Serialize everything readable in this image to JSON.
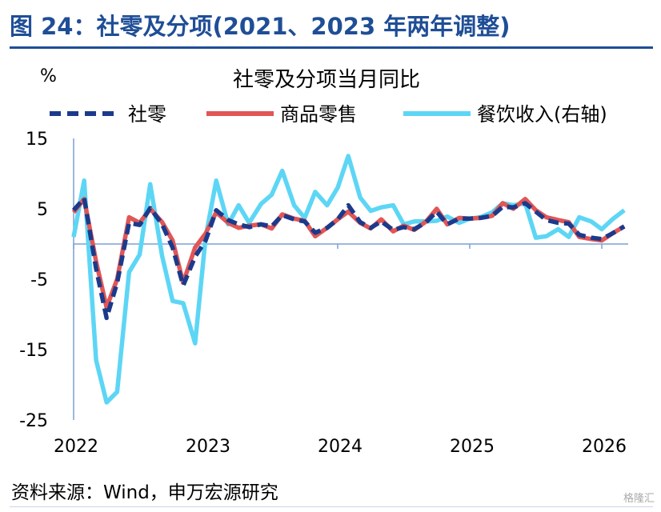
{
  "page": {
    "title": "图 24：社零及分项(2021、2023 年两年调整)",
    "source": "资料来源：Wind，申万宏源研究",
    "watermark": "格隆汇"
  },
  "chart_data": {
    "type": "line",
    "title": "社零及分项当月同比",
    "unit_label": "%",
    "xlabel": "",
    "ylabel": "%",
    "x_ticks": [
      "2022",
      "2023",
      "2024",
      "2025",
      "2026"
    ],
    "y_ticks": [
      15,
      5,
      -5,
      -15,
      -25
    ],
    "ylim": [
      -25,
      15
    ],
    "x_range": [
      2022.0,
      2026.2
    ],
    "grid": false,
    "legend_position": "top",
    "series": [
      {
        "name": "社零",
        "color": "#1b3a8c",
        "style": "dashed",
        "x": [
          2022.0,
          2022.08,
          2022.17,
          2022.25,
          2022.33,
          2022.42,
          2022.5,
          2022.58,
          2022.67,
          2022.75,
          2022.83,
          2022.92,
          2023.0,
          2023.08,
          2023.17,
          2023.25,
          2023.33,
          2023.42,
          2023.5,
          2023.58,
          2023.67,
          2023.75,
          2023.83,
          2023.92,
          2024.0,
          2024.08,
          2024.17,
          2024.25,
          2024.33,
          2024.42,
          2024.5,
          2024.58,
          2024.67,
          2024.75,
          2024.83,
          2024.92,
          2025.0,
          2025.08,
          2025.17,
          2025.25,
          2025.33,
          2025.42,
          2025.5,
          2025.58,
          2025.67,
          2025.75,
          2025.83,
          2025.92,
          2026.0,
          2026.08,
          2026.17
        ],
        "values": [
          4.8,
          6.5,
          -3.5,
          -10.5,
          -5.5,
          3.0,
          2.7,
          5.1,
          2.8,
          -0.5,
          -5.9,
          -1.8,
          0.5,
          4.8,
          3.4,
          2.8,
          2.4,
          2.8,
          2.5,
          4.1,
          3.5,
          3.2,
          1.6,
          2.3,
          3.5,
          5.5,
          3.1,
          2.3,
          3.2,
          2.0,
          2.4,
          2.1,
          3.1,
          4.6,
          2.8,
          3.6,
          3.6,
          3.7,
          4.0,
          5.3,
          5.2,
          5.8,
          4.6,
          3.4,
          3.0,
          2.9,
          1.3,
          0.9,
          0.7,
          1.5,
          2.5
        ]
      },
      {
        "name": "商品零售",
        "color": "#e15656",
        "style": "solid",
        "x": [
          2022.0,
          2022.08,
          2022.17,
          2022.25,
          2022.33,
          2022.42,
          2022.5,
          2022.58,
          2022.67,
          2022.75,
          2022.83,
          2022.92,
          2023.0,
          2023.08,
          2023.17,
          2023.25,
          2023.33,
          2023.42,
          2023.5,
          2023.58,
          2023.67,
          2023.75,
          2023.83,
          2023.92,
          2024.0,
          2024.08,
          2024.17,
          2024.25,
          2024.33,
          2024.42,
          2024.5,
          2024.58,
          2024.67,
          2024.75,
          2024.83,
          2024.92,
          2025.0,
          2025.08,
          2025.17,
          2025.25,
          2025.33,
          2025.42,
          2025.5,
          2025.58,
          2025.67,
          2025.75,
          2025.83,
          2025.92,
          2026.0,
          2026.08,
          2026.17
        ],
        "values": [
          4.5,
          6.4,
          -2.5,
          -9.0,
          -5.0,
          3.8,
          3.0,
          5.0,
          3.1,
          0.5,
          -5.5,
          -0.5,
          1.5,
          4.5,
          3.0,
          2.3,
          2.6,
          2.8,
          2.2,
          4.2,
          3.6,
          3.3,
          1.1,
          2.3,
          3.5,
          4.6,
          3.0,
          2.2,
          3.5,
          1.8,
          2.6,
          2.0,
          3.2,
          5.0,
          2.8,
          3.7,
          3.6,
          3.7,
          4.0,
          5.8,
          5.0,
          6.4,
          4.8,
          3.8,
          3.4,
          3.1,
          1.0,
          0.7,
          0.5,
          1.5,
          2.5
        ]
      },
      {
        "name": "餐饮收入(右轴)",
        "color": "#5dd6f5",
        "style": "solid",
        "x": [
          2022.0,
          2022.08,
          2022.17,
          2022.25,
          2022.33,
          2022.42,
          2022.5,
          2022.58,
          2022.67,
          2022.75,
          2022.83,
          2022.92,
          2023.0,
          2023.08,
          2023.17,
          2023.25,
          2023.33,
          2023.42,
          2023.5,
          2023.58,
          2023.67,
          2023.75,
          2023.83,
          2023.92,
          2024.0,
          2024.08,
          2024.17,
          2024.25,
          2024.33,
          2024.42,
          2024.5,
          2024.58,
          2024.67,
          2024.75,
          2024.83,
          2024.92,
          2025.0,
          2025.08,
          2025.17,
          2025.25,
          2025.33,
          2025.42,
          2025.5,
          2025.58,
          2025.67,
          2025.75,
          2025.83,
          2025.92,
          2026.0,
          2026.08,
          2026.17
        ],
        "values": [
          1.0,
          9.0,
          -16.5,
          -22.5,
          -21.0,
          -4.0,
          -1.5,
          8.5,
          -1.7,
          -8.1,
          -8.4,
          -14.1,
          1.0,
          9.0,
          2.8,
          5.5,
          3.0,
          5.7,
          7.0,
          10.4,
          5.5,
          3.7,
          7.4,
          5.5,
          8.0,
          12.5,
          6.6,
          4.7,
          5.2,
          5.5,
          2.8,
          3.2,
          3.2,
          3.3,
          3.9,
          3.0,
          3.6,
          3.8,
          4.5,
          5.8,
          5.5,
          5.8,
          0.9,
          1.1,
          2.1,
          1.0,
          3.8,
          3.2,
          2.1,
          3.5,
          4.8
        ]
      }
    ]
  }
}
